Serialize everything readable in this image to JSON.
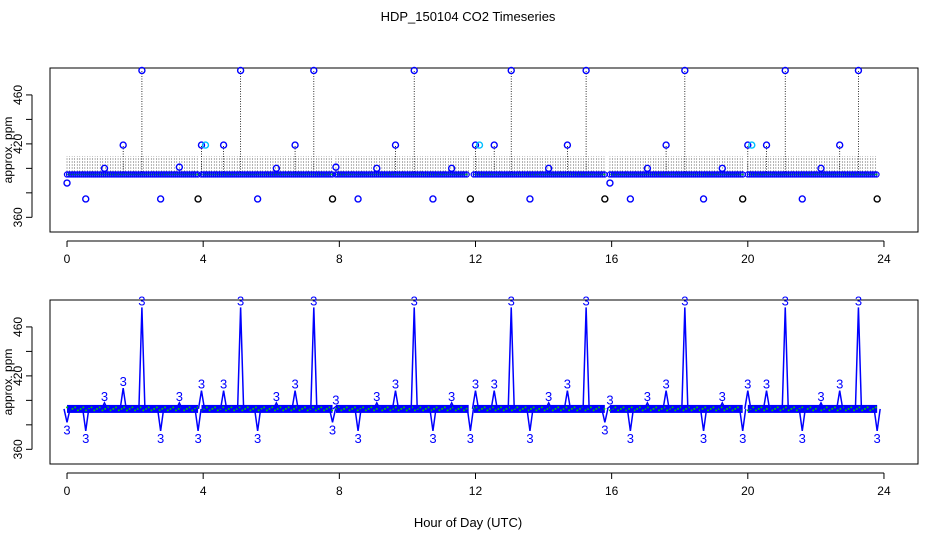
{
  "title": "HDP_150104  CO2 Timeseries",
  "xlabel": "Hour of Day (UTC)",
  "colors": {
    "axis": "#000000",
    "series": "#0000ff",
    "baseline": "#00c800",
    "highlight": "#00bfff",
    "stem": "#000000"
  },
  "chart_data": [
    {
      "type": "scatter",
      "panel": "top",
      "title": "HDP_150104  CO2 Timeseries",
      "xlabel": "",
      "ylabel": "approx. ppm",
      "xlim": [
        -0.5,
        25
      ],
      "ylim": [
        348,
        482
      ],
      "xticks": [
        0,
        4,
        8,
        12,
        16,
        20,
        24
      ],
      "yticks": [
        360,
        380,
        400,
        420,
        440,
        460
      ],
      "ytick_labels": [
        "360",
        "",
        "",
        "420",
        "",
        "460"
      ],
      "grid": false,
      "baseline_ppm": 395,
      "baseline_segments": [
        [
          0,
          3.85
        ],
        [
          3.95,
          7.8
        ],
        [
          7.9,
          11.8
        ],
        [
          11.95,
          15.8
        ],
        [
          15.95,
          19.85
        ],
        [
          20.0,
          23.8
        ]
      ],
      "stem_top_ppm": 410,
      "series": [
        {
          "marker": "circle",
          "x": [
            0.0,
            0.55,
            1.1,
            1.65,
            2.2,
            2.75,
            3.3,
            3.85,
            3.95,
            4.6,
            5.1,
            5.6,
            6.15,
            6.7,
            7.25,
            7.8,
            7.9,
            8.55,
            9.1,
            9.65,
            10.2,
            10.75,
            11.3,
            11.85,
            12.0,
            12.55,
            13.05,
            13.6,
            14.15,
            14.7,
            15.25,
            15.8,
            15.95,
            16.55,
            17.05,
            17.6,
            18.15,
            18.7,
            19.25,
            19.85,
            20.0,
            20.55,
            21.1,
            21.6,
            22.15,
            22.7,
            23.25,
            23.8
          ],
          "y": [
            388,
            375,
            400,
            419,
            480,
            375,
            401,
            375,
            419,
            419,
            480,
            375,
            400,
            419,
            480,
            375,
            401,
            375,
            400,
            419,
            480,
            375,
            400,
            375,
            419,
            419,
            480,
            375,
            400,
            419,
            480,
            375,
            388,
            375,
            400,
            419,
            480,
            375,
            400,
            375,
            419,
            419,
            480,
            375,
            400,
            419,
            480,
            375
          ]
        }
      ]
    },
    {
      "type": "line",
      "panel": "bottom",
      "xlabel": "Hour of Day (UTC)",
      "ylabel": "approx. ppm",
      "xlim": [
        -0.5,
        25
      ],
      "ylim": [
        348,
        482
      ],
      "xticks": [
        0,
        4,
        8,
        12,
        16,
        20,
        24
      ],
      "yticks": [
        360,
        380,
        400,
        420,
        440,
        460
      ],
      "ytick_labels": [
        "360",
        "",
        "",
        "420",
        "",
        "460"
      ],
      "grid": false,
      "point_label": "3",
      "baseline_ppm": 393,
      "segments": [
        [
          0,
          3.85
        ],
        [
          3.95,
          7.8
        ],
        [
          7.9,
          11.8
        ],
        [
          11.95,
          15.8
        ],
        [
          15.95,
          19.85
        ],
        [
          20.0,
          23.8
        ]
      ],
      "series": [
        {
          "name": "",
          "x": [
            0.0,
            0.55,
            1.1,
            1.65,
            2.2,
            2.75,
            3.3,
            3.85,
            3.95,
            4.6,
            5.1,
            5.6,
            6.15,
            6.7,
            7.25,
            7.8,
            7.9,
            8.55,
            9.1,
            9.65,
            10.2,
            10.75,
            11.3,
            11.85,
            12.0,
            12.55,
            13.05,
            13.6,
            14.15,
            14.7,
            15.25,
            15.8,
            15.95,
            16.55,
            17.05,
            17.6,
            18.15,
            18.7,
            19.25,
            19.85,
            20.0,
            20.55,
            21.1,
            21.6,
            22.15,
            22.7,
            23.25,
            23.8
          ],
          "y": [
            382,
            375,
            398,
            410,
            476,
            375,
            398,
            375,
            408,
            408,
            476,
            375,
            398,
            408,
            476,
            382,
            395,
            375,
            398,
            408,
            476,
            375,
            398,
            375,
            408,
            408,
            476,
            375,
            398,
            408,
            476,
            382,
            395,
            375,
            398,
            408,
            476,
            375,
            398,
            375,
            408,
            408,
            476,
            375,
            398,
            408,
            476,
            375
          ]
        }
      ]
    }
  ]
}
